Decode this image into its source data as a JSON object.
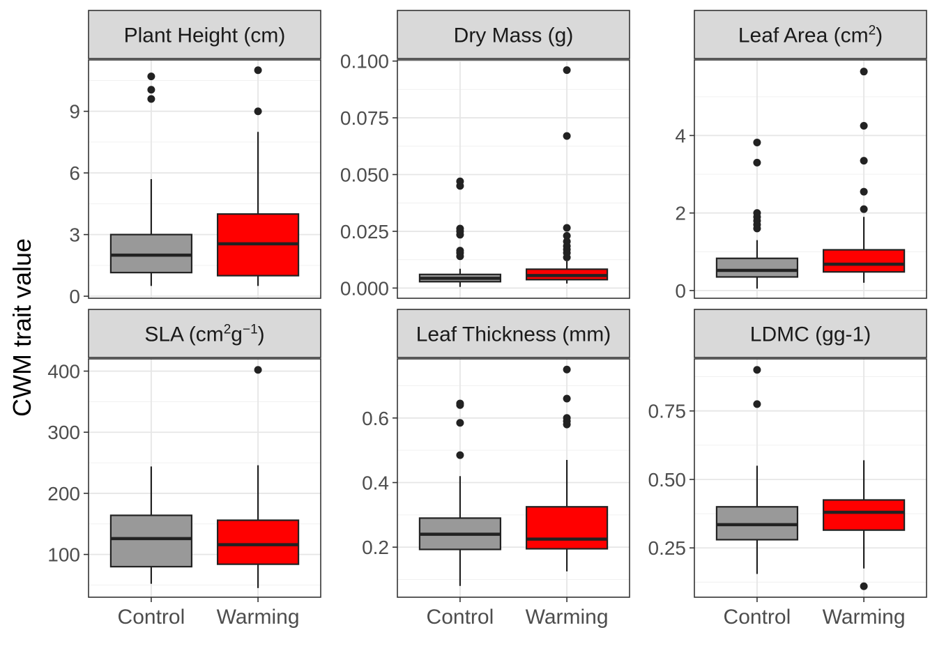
{
  "chart_data": {
    "type": "boxplot",
    "facet_layout": "3 columns x 2 rows",
    "ylabel": "CWM trait value",
    "categories": [
      "Control",
      "Warming"
    ],
    "colors": {
      "Control": "#999999",
      "Warming": "#ff0000"
    },
    "grid": true,
    "panels": [
      {
        "title": "Plant Height (cm)",
        "title_main": "Plant Height",
        "title_unit": "cm",
        "title_sup": "",
        "ylim": [
          -0.1,
          11.5
        ],
        "yticks": [
          0,
          3,
          6,
          9
        ],
        "ytick_labels": [
          "0",
          "3",
          "6",
          "9"
        ],
        "boxes": [
          {
            "category": "Control",
            "min": 0.5,
            "q1": 1.15,
            "median": 2.0,
            "q3": 3.0,
            "max": 5.7,
            "outliers": [
              9.6,
              10.05,
              10.7
            ]
          },
          {
            "category": "Warming",
            "min": 0.5,
            "q1": 1.0,
            "median": 2.55,
            "q3": 4.0,
            "max": 8.0,
            "outliers": [
              9.0,
              11.0
            ]
          }
        ]
      },
      {
        "title": "Dry Mass (g)",
        "title_main": "Dry Mass",
        "title_unit": "g",
        "title_sup": "",
        "ylim": [
          -0.0045,
          0.1005
        ],
        "yticks": [
          0,
          0.025,
          0.05,
          0.075,
          0.1
        ],
        "ytick_labels": [
          "0.000",
          "0.025",
          "0.050",
          "0.075",
          "0.100"
        ],
        "boxes": [
          {
            "category": "Control",
            "min": 0.0005,
            "q1": 0.0028,
            "median": 0.0043,
            "q3": 0.006,
            "max": 0.0085,
            "outliers": [
              0.014,
              0.0155,
              0.0165,
              0.0235,
              0.025,
              0.0262,
              0.045,
              0.047
            ]
          },
          {
            "category": "Warming",
            "min": 0.002,
            "q1": 0.0037,
            "median": 0.0055,
            "q3": 0.0083,
            "max": 0.0118,
            "outliers": [
              0.0135,
              0.0155,
              0.017,
              0.0185,
              0.0205,
              0.023,
              0.0265,
              0.067,
              0.096
            ]
          }
        ]
      },
      {
        "title": "Leaf Area (cm2)",
        "title_main": "Leaf Area",
        "title_unit": "cm",
        "title_sup": "2",
        "ylim": [
          -0.2,
          5.95
        ],
        "yticks": [
          0,
          2,
          4
        ],
        "ytick_labels": [
          "0",
          "2",
          "4"
        ],
        "boxes": [
          {
            "category": "Control",
            "min": 0.05,
            "q1": 0.35,
            "median": 0.52,
            "q3": 0.83,
            "max": 1.3,
            "outliers": [
              1.6,
              1.7,
              1.8,
              1.9,
              2.0,
              3.3,
              3.82
            ]
          },
          {
            "category": "Warming",
            "min": 0.2,
            "q1": 0.48,
            "median": 0.68,
            "q3": 1.05,
            "max": 1.9,
            "outliers": [
              2.1,
              2.55,
              3.35,
              4.25,
              5.65
            ]
          }
        ]
      },
      {
        "title": "SLA (cm2g-1)",
        "title_main": "SLA",
        "title_unit": "cm2g-1",
        "title_sup": "",
        "ylim": [
          30,
          420
        ],
        "yticks": [
          100,
          200,
          300,
          400
        ],
        "ytick_labels": [
          "100",
          "200",
          "300",
          "400"
        ],
        "boxes": [
          {
            "category": "Control",
            "min": 52,
            "q1": 80,
            "median": 126,
            "q3": 164,
            "max": 244,
            "outliers": []
          },
          {
            "category": "Warming",
            "min": 45,
            "q1": 84,
            "median": 116,
            "q3": 156,
            "max": 246,
            "outliers": [
              402
            ]
          }
        ]
      },
      {
        "title": "Leaf Thickness (mm)",
        "title_main": "Leaf Thickness",
        "title_unit": "mm",
        "title_sup": "",
        "ylim": [
          0.045,
          0.783
        ],
        "yticks": [
          0.2,
          0.4,
          0.6
        ],
        "ytick_labels": [
          "0.2",
          "0.4",
          "0.6"
        ],
        "boxes": [
          {
            "category": "Control",
            "min": 0.08,
            "q1": 0.193,
            "median": 0.24,
            "q3": 0.29,
            "max": 0.42,
            "outliers": [
              0.485,
              0.585,
              0.64,
              0.645
            ]
          },
          {
            "category": "Warming",
            "min": 0.125,
            "q1": 0.195,
            "median": 0.225,
            "q3": 0.325,
            "max": 0.47,
            "outliers": [
              0.58,
              0.59,
              0.6,
              0.66,
              0.75
            ]
          }
        ]
      },
      {
        "title": "LDMC (gg-1)",
        "title_main": "LDMC",
        "title_unit": "gg-1",
        "title_sup": "",
        "ylim": [
          0.07,
          0.94
        ],
        "yticks": [
          0.25,
          0.5,
          0.75
        ],
        "ytick_labels": [
          "0.25",
          "0.50",
          "0.75"
        ],
        "boxes": [
          {
            "category": "Control",
            "min": 0.155,
            "q1": 0.28,
            "median": 0.335,
            "q3": 0.4,
            "max": 0.55,
            "outliers": [
              0.775,
              0.9
            ]
          },
          {
            "category": "Warming",
            "min": 0.175,
            "q1": 0.315,
            "median": 0.38,
            "q3": 0.425,
            "max": 0.57,
            "outliers": [
              0.11
            ]
          }
        ]
      }
    ]
  }
}
